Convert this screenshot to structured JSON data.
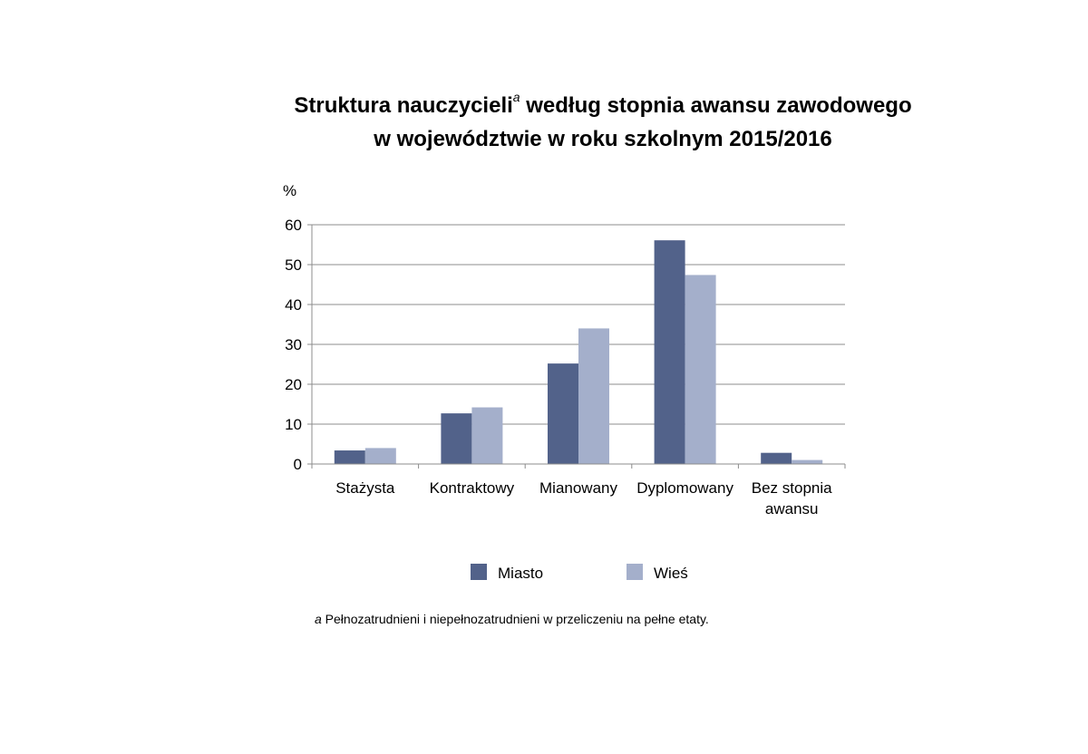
{
  "title": {
    "line1_before": "Struktura nauczycieli",
    "line1_marker": "a",
    "line1_after": " według stopnia awansu zawodowego",
    "line2": "w województwie w roku szkolnym 2015/2016"
  },
  "footnote": {
    "marker": "a",
    "text": " Pełnozatrudnieni i niepełnozatrudnieni w przeliczeniu na pełne etaty."
  },
  "chart_data": {
    "type": "bar",
    "ylabel": "%",
    "ylim": [
      0,
      60
    ],
    "yticks": [
      0,
      10,
      20,
      30,
      40,
      50,
      60
    ],
    "grid": true,
    "legend_position": "bottom",
    "categories": [
      [
        "Stażysta"
      ],
      [
        "Kontraktowy"
      ],
      [
        "Mianowany"
      ],
      [
        "Dyplomowany"
      ],
      [
        "Bez stopnia",
        "awansu"
      ]
    ],
    "series": [
      {
        "name": "Miasto",
        "color": "#52628A",
        "values": [
          3.4,
          12.7,
          25.2,
          56.1,
          2.8
        ]
      },
      {
        "name": "Wieś",
        "color": "#A4AFCB",
        "values": [
          4.0,
          14.2,
          34.0,
          47.4,
          1.0
        ]
      }
    ]
  }
}
